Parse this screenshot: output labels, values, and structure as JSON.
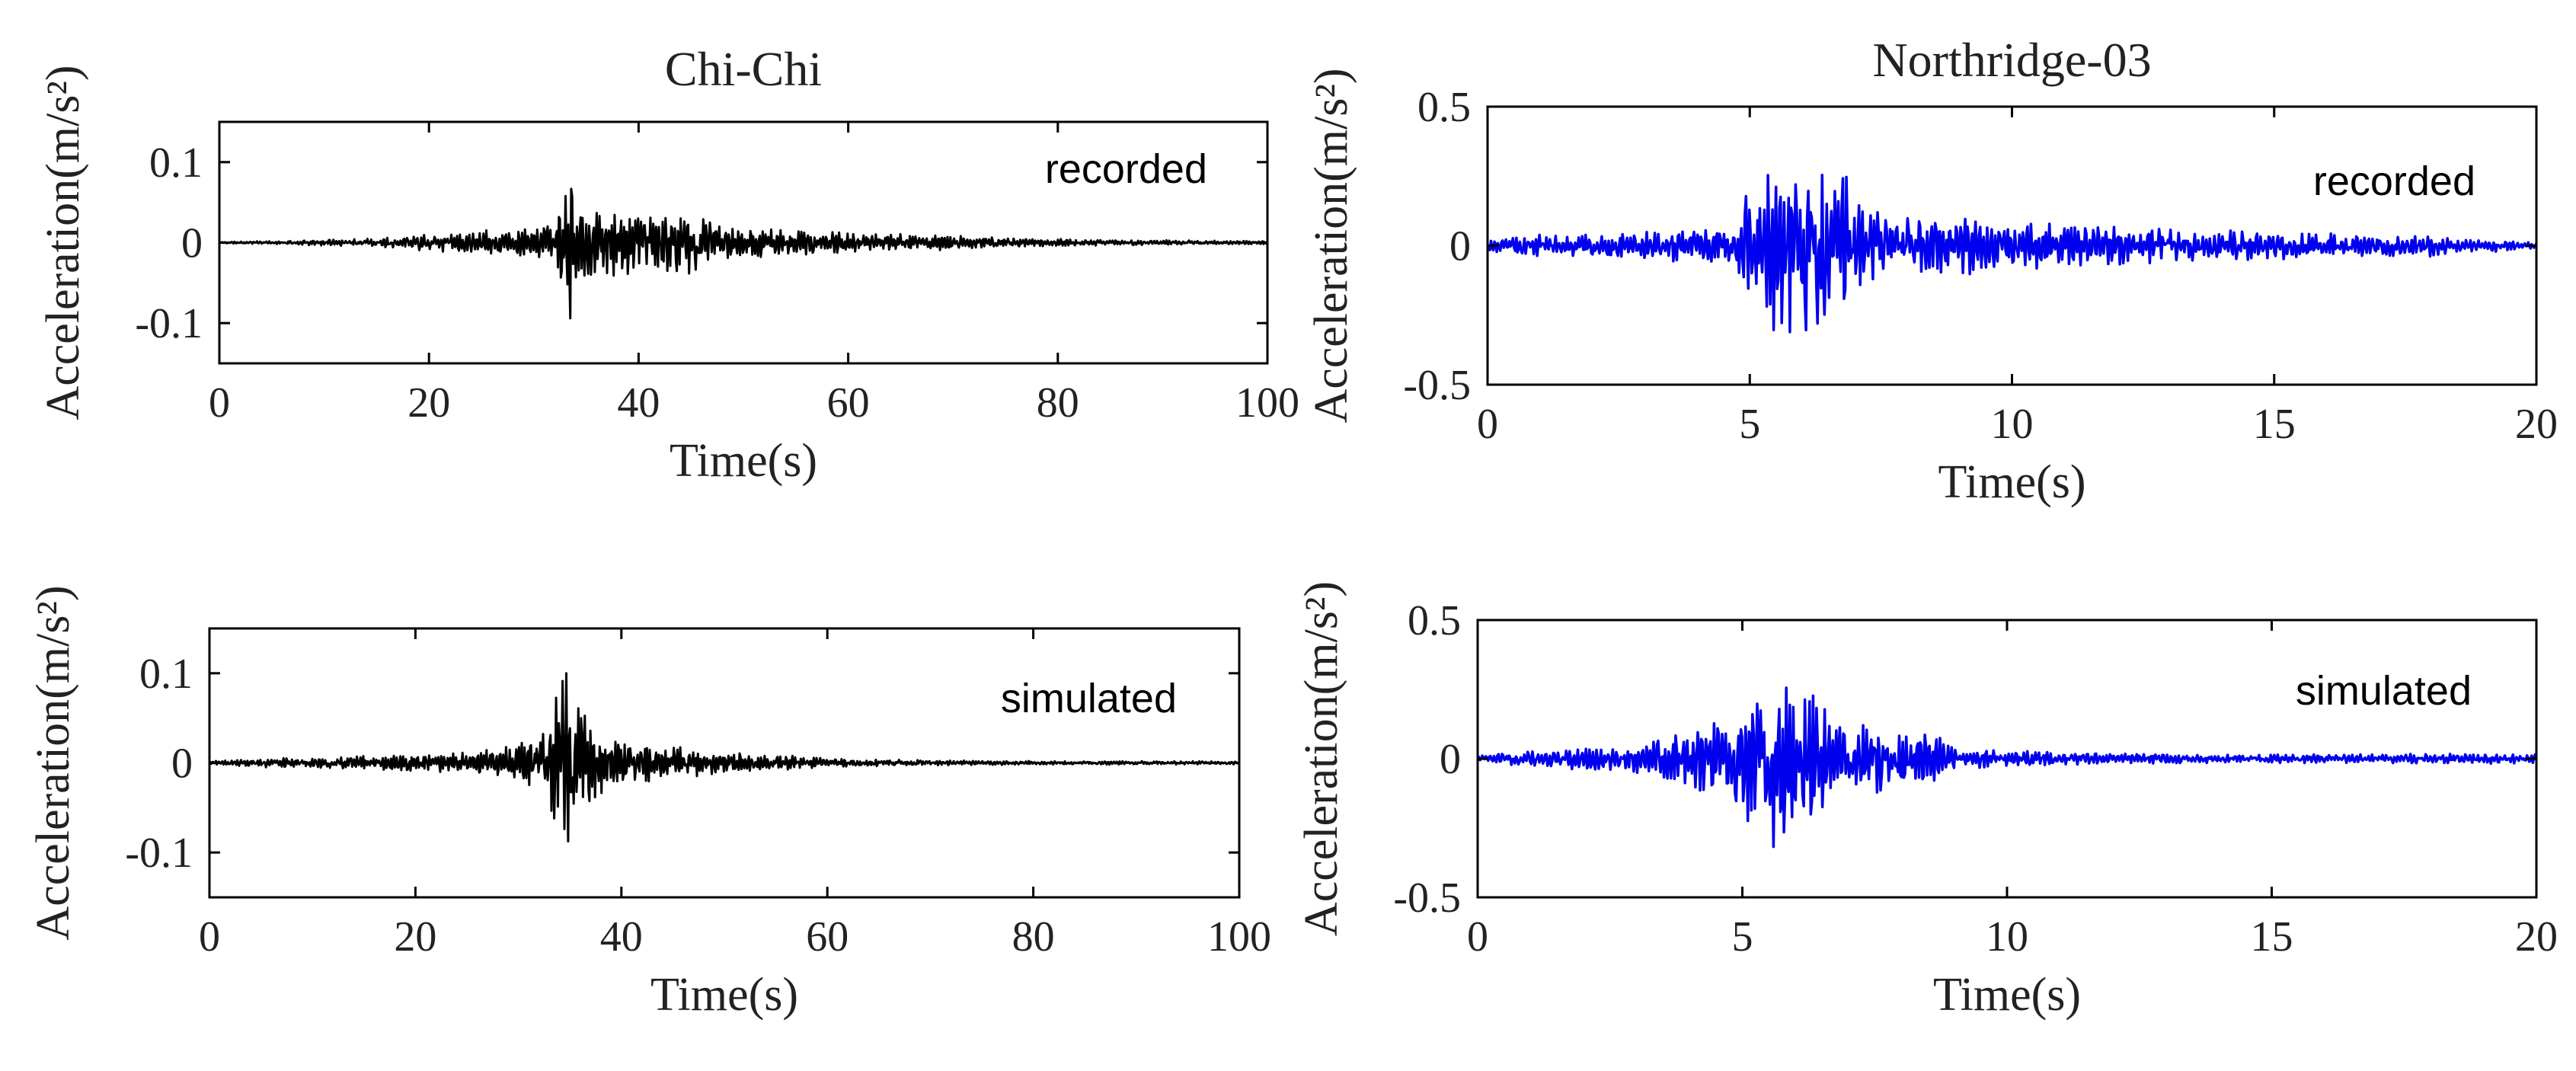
{
  "chart_data": [
    {
      "type": "line",
      "id": "chichi-recorded",
      "title": "Chi-Chi",
      "annotation": "recorded",
      "xlabel": "Time(s)",
      "ylabel": "Acceleration(m/s²)",
      "xlim": [
        0,
        100
      ],
      "ylim": [
        -0.15,
        0.15
      ],
      "xticks": [
        0,
        20,
        40,
        60,
        80,
        100
      ],
      "xtick_labels": [
        "0",
        "20",
        "40",
        "60",
        "80",
        "100"
      ],
      "yticks": [
        -0.1,
        0,
        0.1
      ],
      "ytick_labels": [
        "-0.1",
        "0",
        "0.1"
      ],
      "color": "#000000",
      "series": [
        {
          "name": "recorded",
          "envelope_t": [
            0,
            5,
            15,
            25,
            30,
            32,
            33,
            33.6,
            34,
            34.5,
            35,
            36,
            38,
            40,
            44,
            48,
            55,
            60,
            68,
            75,
            90,
            100
          ],
          "envelope_a": [
            0.001,
            0.002,
            0.006,
            0.015,
            0.02,
            0.035,
            0.08,
            0.112,
            0.095,
            0.07,
            0.045,
            0.04,
            0.045,
            0.035,
            0.045,
            0.02,
            0.016,
            0.012,
            0.01,
            0.006,
            0.003,
            0.002
          ],
          "dt": 0.09,
          "seed": 11
        }
      ]
    },
    {
      "type": "line",
      "id": "northridge-recorded",
      "title": "Northridge-03",
      "annotation": "recorded",
      "xlabel": "Time(s)",
      "ylabel": "Acceleration(m/s²)",
      "xlim": [
        0,
        20
      ],
      "ylim": [
        -0.5,
        0.5
      ],
      "xticks": [
        0,
        5,
        10,
        15,
        20
      ],
      "xtick_labels": [
        "0",
        "5",
        "10",
        "15",
        "20"
      ],
      "yticks": [
        -0.5,
        0,
        0.5
      ],
      "ytick_labels": [
        "-0.5",
        "0",
        "0.5"
      ],
      "color": "#0000ee",
      "series": [
        {
          "name": "recorded",
          "envelope_t": [
            0,
            1,
            3,
            4.5,
            5,
            5.5,
            6,
            6.5,
            7,
            7.5,
            8,
            9,
            10,
            12,
            15,
            18,
            20
          ],
          "envelope_a": [
            0.02,
            0.04,
            0.05,
            0.08,
            0.2,
            0.37,
            0.32,
            0.4,
            0.2,
            0.12,
            0.14,
            0.12,
            0.09,
            0.07,
            0.05,
            0.04,
            0.01
          ],
          "dt": 0.022,
          "seed": 23
        }
      ]
    },
    {
      "type": "line",
      "id": "chichi-simulated",
      "title": "",
      "annotation": "simulated",
      "xlabel": "Time(s)",
      "ylabel": "Acceleration(m/s²)",
      "xlim": [
        0,
        100
      ],
      "ylim": [
        -0.15,
        0.15
      ],
      "xticks": [
        0,
        20,
        40,
        60,
        80,
        100
      ],
      "xtick_labels": [
        "0",
        "20",
        "40",
        "60",
        "80",
        "100"
      ],
      "yticks": [
        -0.1,
        0,
        0.1
      ],
      "ytick_labels": [
        "-0.1",
        "0",
        "0.1"
      ],
      "color": "#000000",
      "series": [
        {
          "name": "simulated",
          "envelope_t": [
            0,
            5,
            15,
            25,
            30,
            33,
            34.5,
            35,
            36,
            38,
            40,
            45,
            50,
            55,
            60,
            70,
            80,
            100
          ],
          "envelope_a": [
            0.002,
            0.005,
            0.008,
            0.012,
            0.02,
            0.045,
            0.11,
            0.1,
            0.06,
            0.035,
            0.025,
            0.02,
            0.012,
            0.01,
            0.005,
            0.003,
            0.002,
            0.002
          ],
          "dt": 0.09,
          "seed": 37
        }
      ]
    },
    {
      "type": "line",
      "id": "northridge-simulated",
      "title": "",
      "annotation": "simulated",
      "xlabel": "Time(s)",
      "ylabel": "Acceleration(m/s²)",
      "xlim": [
        0,
        20
      ],
      "ylim": [
        -0.5,
        0.5
      ],
      "xticks": [
        0,
        5,
        10,
        15,
        20
      ],
      "xtick_labels": [
        "0",
        "5",
        "10",
        "15",
        "20"
      ],
      "yticks": [
        -0.5,
        0,
        0.5
      ],
      "ytick_labels": [
        "-0.5",
        "0",
        "0.5"
      ],
      "color": "#0000ee",
      "series": [
        {
          "name": "simulated",
          "envelope_t": [
            0,
            1,
            3,
            4,
            5,
            5.7,
            6,
            6.5,
            7,
            7.5,
            8,
            8.7,
            9,
            10,
            12,
            15,
            20
          ],
          "envelope_a": [
            0.01,
            0.03,
            0.05,
            0.12,
            0.2,
            0.37,
            0.33,
            0.2,
            0.13,
            0.13,
            0.1,
            0.08,
            0.04,
            0.03,
            0.02,
            0.015,
            0.02
          ],
          "dt": 0.022,
          "seed": 53
        }
      ]
    }
  ]
}
